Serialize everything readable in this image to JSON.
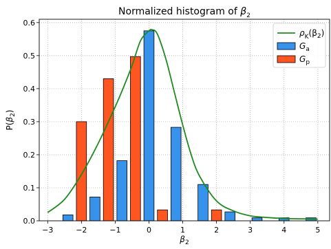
{
  "chart_data": {
    "type": "bar",
    "title": "Normalized histogram of",
    "title_symbol": {
      "base": "β",
      "sub": "2"
    },
    "xlabel": {
      "base": "β",
      "sub": "2"
    },
    "ylabel": {
      "prefix": "P(",
      "base": "β",
      "sub": "2",
      "suffix": ")"
    },
    "xlim": [
      -3.25,
      5.35
    ],
    "ylim": [
      0,
      0.61
    ],
    "xticks": [
      -3,
      -2,
      -1,
      0,
      1,
      2,
      3,
      4,
      5
    ],
    "xtick_labels": [
      "−3",
      "−2",
      "−1",
      "0",
      "1",
      "2",
      "3",
      "4",
      "5"
    ],
    "yticks": [
      0.0,
      0.1,
      0.2,
      0.3,
      0.4,
      0.5,
      0.6
    ],
    "ytick_labels": [
      "0.0",
      "0.1",
      "0.2",
      "0.3",
      "0.4",
      "0.5",
      "0.6"
    ],
    "grid": true,
    "legend_position": "upper-right",
    "series": [
      {
        "name": "G_a",
        "label": {
          "base": "G",
          "sub": "a"
        },
        "kind": "bar",
        "color": "#3792ec",
        "x": [
          -2.4,
          -1.6,
          -0.8,
          0.0,
          0.8,
          1.6,
          2.4,
          3.2,
          4.0,
          4.8
        ],
        "values": [
          0.018,
          0.072,
          0.182,
          0.575,
          0.283,
          0.11,
          0.027,
          0.009,
          0.009,
          0.009
        ]
      },
      {
        "name": "G_p",
        "label": {
          "base": "G",
          "sub": "p"
        },
        "kind": "bar",
        "color": "#ff5520",
        "x": [
          -2.0,
          -1.2,
          -0.4,
          0.4,
          2.0
        ],
        "values": [
          0.3,
          0.43,
          0.497,
          0.033,
          0.033
        ]
      },
      {
        "name": "ρ_K(β_2)",
        "label": {
          "base": "ρ",
          "sub": "K",
          "suffix": "(β",
          "sub2": "2",
          "suffix2": ")"
        },
        "kind": "line",
        "color": "#1d8a1d",
        "x": [
          -3.0,
          -2.5,
          -2.0,
          -1.5,
          -1.0,
          -0.75,
          -0.5,
          -0.25,
          0.0,
          0.1,
          0.25,
          0.5,
          0.75,
          1.0,
          1.25,
          1.5,
          2.0,
          2.5,
          3.0,
          3.5,
          4.0,
          4.5,
          5.0
        ],
        "values": [
          0.025,
          0.065,
          0.14,
          0.235,
          0.345,
          0.405,
          0.47,
          0.545,
          0.575,
          0.578,
          0.565,
          0.49,
          0.39,
          0.29,
          0.2,
          0.135,
          0.06,
          0.03,
          0.015,
          0.01,
          0.007,
          0.006,
          0.005
        ]
      }
    ]
  }
}
